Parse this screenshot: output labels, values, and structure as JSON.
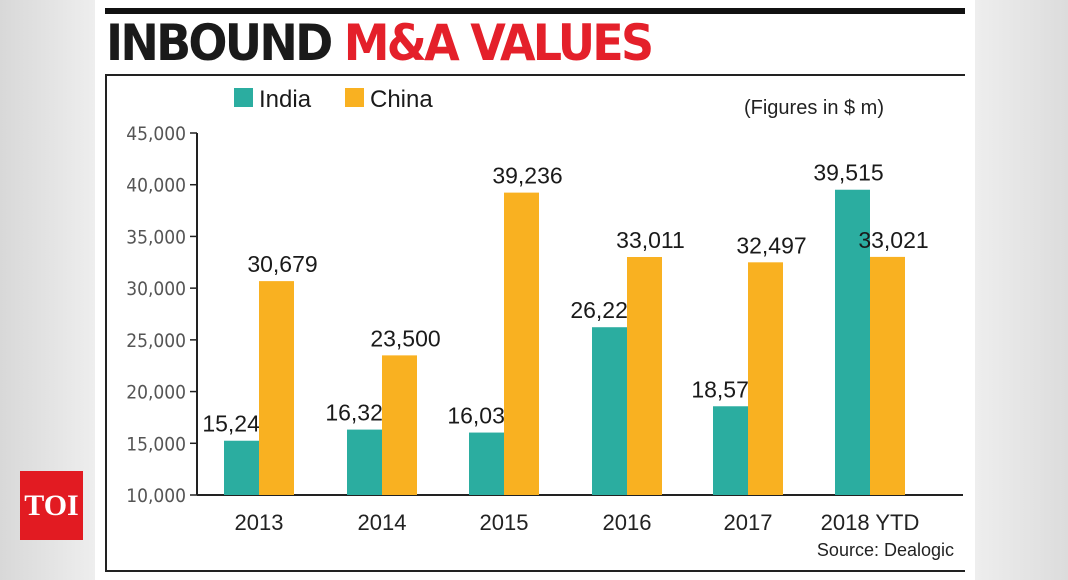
{
  "title": {
    "part1": "INBOUND",
    "part2": "M&A VALUES"
  },
  "logo": "TOI",
  "chart_data": {
    "type": "bar",
    "title": "INBOUND M&A VALUES",
    "subtitle": "(Figures in $ m)",
    "source": "Source: Dealogic",
    "categories": [
      "2013",
      "2014",
      "2015",
      "2016",
      "2017",
      "2018 YTD"
    ],
    "series": [
      {
        "name": "India",
        "color": "#2bada0",
        "values": [
          15247,
          16324,
          16037,
          26222,
          18579,
          39515
        ],
        "labels": [
          "15,247",
          "16,324",
          "16,037",
          "26,222",
          "18,579",
          "39,515"
        ]
      },
      {
        "name": "China",
        "color": "#f9b121",
        "values": [
          30679,
          23500,
          39236,
          33011,
          32497,
          33021
        ],
        "labels": [
          "30,679",
          "23,500",
          "39,236",
          "33,011",
          "32,497",
          "33,021"
        ]
      }
    ],
    "ylim": [
      10000,
      45000
    ],
    "yticks": [
      10000,
      15000,
      20000,
      25000,
      30000,
      35000,
      40000,
      45000
    ],
    "ytick_labels": [
      "10,000",
      "15,000",
      "20,000",
      "25,000",
      "30,000",
      "35,000",
      "40,000",
      "45,000"
    ],
    "legend": "top-left",
    "grid": false
  }
}
